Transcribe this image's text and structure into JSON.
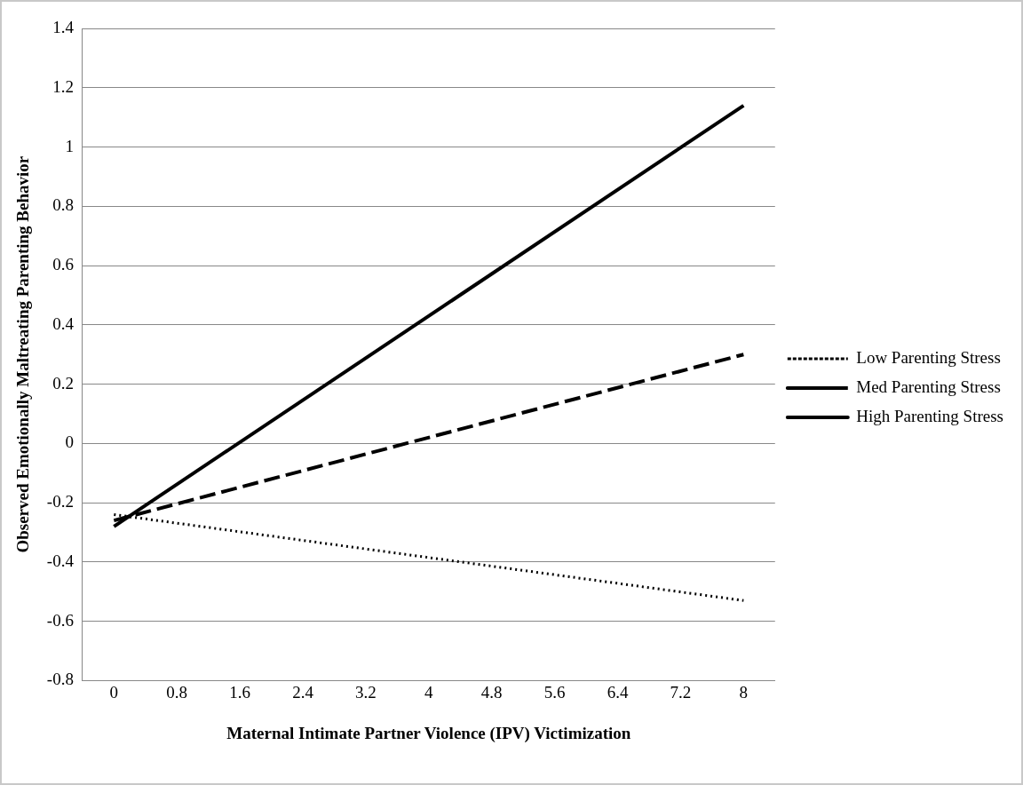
{
  "chart_data": {
    "type": "line",
    "xlabel": "Maternal Intimate Partner Violence (IPV) Victimization",
    "ylabel": "Observed Emotionally Maltreating Parenting Behavior",
    "x": [
      0,
      8
    ],
    "xlim": [
      -0.4,
      8.4
    ],
    "xticks": [
      0,
      0.8,
      1.6,
      2.4,
      3.2,
      4,
      4.8,
      5.6,
      6.4,
      7.2,
      8
    ],
    "ylim": [
      -0.8,
      1.4
    ],
    "yticks": [
      -0.8,
      -0.6,
      -0.4,
      -0.2,
      0,
      0.2,
      0.4,
      0.6,
      0.8,
      1,
      1.2,
      1.4
    ],
    "grid": "y",
    "legend": "right",
    "marker": "none",
    "series": [
      {
        "name": "Low Parenting Stress",
        "color": "#000000",
        "values": [
          -0.24,
          -0.53
        ],
        "line_style": "dotted"
      },
      {
        "name": "Med Parenting Stress",
        "color": "#000000",
        "values": [
          -0.26,
          0.3
        ],
        "line_style": "dashed"
      },
      {
        "name": "High Parenting Stress",
        "color": "#000000",
        "values": [
          -0.28,
          1.14
        ],
        "line_style": "solid"
      }
    ]
  }
}
